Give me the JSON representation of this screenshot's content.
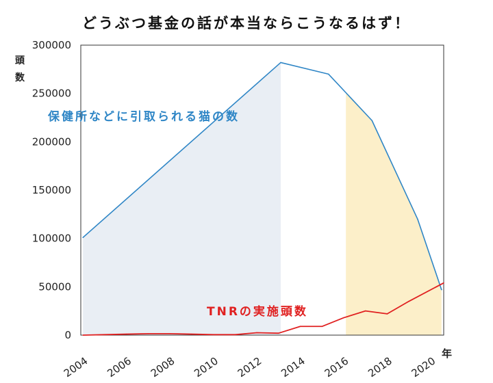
{
  "chart_data": {
    "type": "line",
    "title": "どうぶつ基金の話が本当ならこうなるはず！",
    "ylabel": "頭数",
    "xlabel": "年",
    "ylim": [
      0,
      300000
    ],
    "xlim": [
      2003.9,
      2020.6
    ],
    "yticks": [
      "300000",
      "250000",
      "200000",
      "150000",
      "100000",
      "50000",
      "0"
    ],
    "ytick_values": [
      300000,
      250000,
      200000,
      150000,
      100000,
      50000,
      0
    ],
    "xticks": [
      "2004",
      "2006",
      "2008",
      "2010",
      "2012",
      "2014",
      "2016",
      "2018",
      "2020"
    ],
    "xtick_values": [
      2004,
      2006,
      2008,
      2010,
      2012,
      2014,
      2016,
      2018,
      2020
    ],
    "series": [
      {
        "name": "保健所などに引取られる猫の数",
        "color": "#2f86c6",
        "x": [
          2004,
          2013.1,
          2015.3,
          2017.3,
          2019.4,
          2020.5
        ],
        "values": [
          101000,
          282000,
          270000,
          222000,
          120000,
          47000
        ]
      },
      {
        "name": "TNRの実施頭数",
        "color": "#e02020",
        "x": [
          2004,
          2005,
          2006,
          2007,
          2008,
          2009,
          2010,
          2011,
          2012,
          2013,
          2014,
          2015,
          2016,
          2017,
          2018,
          2019,
          2020.6
        ],
        "values": [
          0,
          500,
          1000,
          1500,
          1500,
          1000,
          500,
          500,
          2500,
          2000,
          9000,
          9000,
          18000,
          25000,
          22000,
          35000,
          54000
        ]
      }
    ],
    "shaded_regions": [
      {
        "label": "blue",
        "x_start": 2004,
        "x_end": 2013.1,
        "color": "#e9eef4"
      },
      {
        "label": "yellow",
        "x_start": 2016.1,
        "x_end": 2020.5,
        "color": "#fcefc9"
      }
    ],
    "annotations": {
      "blue_series_label": "保健所などに引取られる猫の数",
      "red_series_label": "TNRの実施頭数"
    }
  }
}
